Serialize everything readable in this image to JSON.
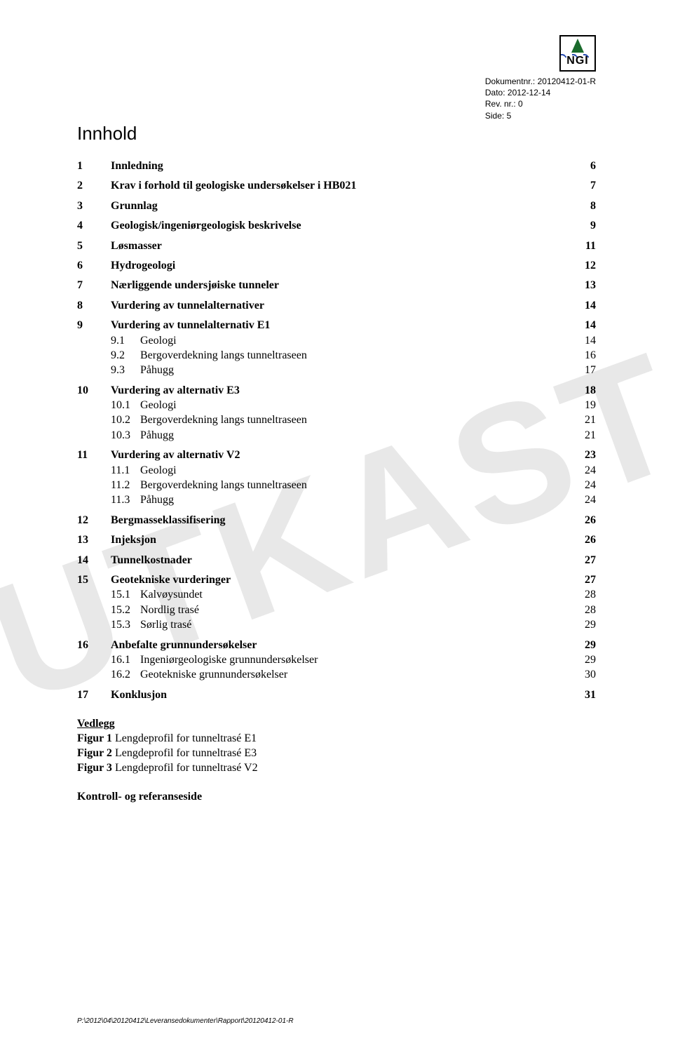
{
  "watermark_text": "UTKAST",
  "header": {
    "doc_nr_label": "Dokumentnr.:",
    "doc_nr": "20120412-01-R",
    "date_label": "Dato:",
    "date": "2012-12-14",
    "rev_label": "Rev. nr.:",
    "rev": "0",
    "side_label": "Side:",
    "side": "5",
    "logo_text": "NGI"
  },
  "title": "Innhold",
  "toc": [
    {
      "level": 1,
      "num": "1",
      "label": "Innledning",
      "page": "6"
    },
    {
      "level": 1,
      "num": "2",
      "label": "Krav i forhold til geologiske undersøkelser i HB021",
      "page": "7"
    },
    {
      "level": 1,
      "num": "3",
      "label": "Grunnlag",
      "page": "8"
    },
    {
      "level": 1,
      "num": "4",
      "label": "Geologisk/ingeniørgeologisk beskrivelse",
      "page": "9"
    },
    {
      "level": 1,
      "num": "5",
      "label": "Løsmasser",
      "page": "11"
    },
    {
      "level": 1,
      "num": "6",
      "label": "Hydrogeologi",
      "page": "12"
    },
    {
      "level": 1,
      "num": "7",
      "label": "Nærliggende undersjøiske tunneler",
      "page": "13"
    },
    {
      "level": 1,
      "num": "8",
      "label": "Vurdering av tunnelalternativer",
      "page": "14"
    },
    {
      "level": 1,
      "num": "9",
      "label": "Vurdering av tunnelalternativ E1",
      "page": "14"
    },
    {
      "level": 2,
      "num": "9.1",
      "label": "Geologi",
      "page": "14"
    },
    {
      "level": 2,
      "num": "9.2",
      "label": "Bergoverdekning langs tunneltraseen",
      "page": "16"
    },
    {
      "level": 2,
      "num": "9.3",
      "label": "Påhugg",
      "page": "17"
    },
    {
      "level": 1,
      "num": "10",
      "label": "Vurdering av alternativ E3",
      "page": "18"
    },
    {
      "level": 2,
      "num": "10.1",
      "label": "Geologi",
      "page": "19"
    },
    {
      "level": 2,
      "num": "10.2",
      "label": "Bergoverdekning langs tunneltraseen",
      "page": "21"
    },
    {
      "level": 2,
      "num": "10.3",
      "label": "Påhugg",
      "page": "21"
    },
    {
      "level": 1,
      "num": "11",
      "label": "Vurdering av alternativ V2",
      "page": "23"
    },
    {
      "level": 2,
      "num": "11.1",
      "label": "Geologi",
      "page": "24"
    },
    {
      "level": 2,
      "num": "11.2",
      "label": "Bergoverdekning langs tunneltraseen",
      "page": "24"
    },
    {
      "level": 2,
      "num": "11.3",
      "label": "Påhugg",
      "page": "24"
    },
    {
      "level": 1,
      "num": "12",
      "label": "Bergmasseklassifisering",
      "page": "26"
    },
    {
      "level": 1,
      "num": "13",
      "label": "Injeksjon",
      "page": "26"
    },
    {
      "level": 1,
      "num": "14",
      "label": "Tunnelkostnader",
      "page": "27"
    },
    {
      "level": 1,
      "num": "15",
      "label": "Geotekniske vurderinger",
      "page": "27"
    },
    {
      "level": 2,
      "num": "15.1",
      "label": "Kalvøysundet",
      "page": "28"
    },
    {
      "level": 2,
      "num": "15.2",
      "label": "Nordlig trasé",
      "page": "28"
    },
    {
      "level": 2,
      "num": "15.3",
      "label": "Sørlig trasé",
      "page": "29"
    },
    {
      "level": 1,
      "num": "16",
      "label": "Anbefalte grunnundersøkelser",
      "page": "29"
    },
    {
      "level": 2,
      "num": "16.1",
      "label": "Ingeniørgeologiske grunnundersøkelser",
      "page": "29"
    },
    {
      "level": 2,
      "num": "16.2",
      "label": "Geotekniske grunnundersøkelser",
      "page": "30"
    },
    {
      "level": 1,
      "num": "17",
      "label": "Konklusjon",
      "page": "31"
    }
  ],
  "vedlegg": {
    "title": "Vedlegg",
    "items": [
      {
        "label": "Figur 1",
        "text": "Lengdeprofil for tunneltrasé E1"
      },
      {
        "label": "Figur 2",
        "text": "Lengdeprofil for tunneltrasé E3"
      },
      {
        "label": "Figur 3",
        "text": "Lengdeprofil for tunneltrasé V2"
      }
    ]
  },
  "kontroll": "Kontroll- og referanseside",
  "footer_path": "P:\\2012\\04\\20120412\\Leveransedokumenter\\Rapport\\20120412-01-R"
}
